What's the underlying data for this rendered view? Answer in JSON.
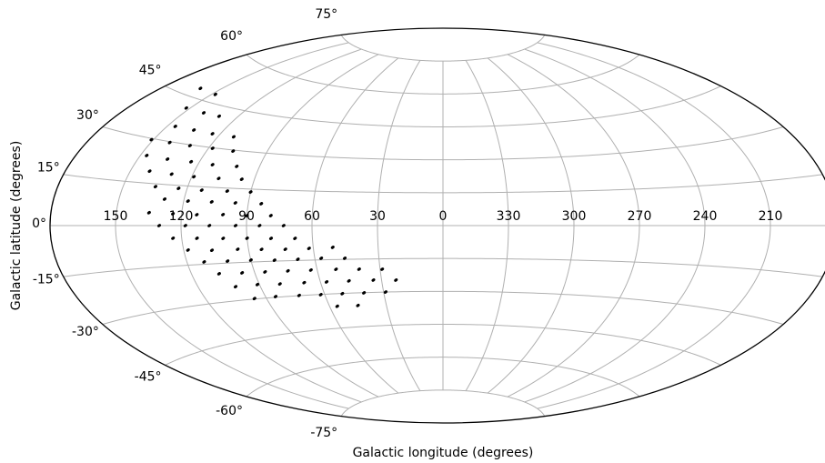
{
  "chart_data": {
    "type": "scatter",
    "projection": "aitoff",
    "x_label": "Galactic longitude (degrees)",
    "y_label": "Galactic latitude (degrees)",
    "x": [
      161,
      148,
      152,
      140,
      130,
      146,
      135,
      124,
      112,
      151,
      141,
      130,
      118,
      107,
      147,
      136,
      124,
      113,
      101,
      141,
      130,
      119,
      107,
      96,
      135,
      124,
      113,
      101,
      90,
      129,
      118,
      107,
      96,
      84,
      135,
      124,
      113,
      101,
      90,
      79,
      130,
      118,
      107,
      95,
      84,
      73,
      124,
      113,
      101,
      90,
      79,
      68,
      118,
      107,
      95,
      84,
      73,
      62,
      51,
      112,
      101,
      90,
      79,
      68,
      57,
      46,
      107,
      96,
      85,
      74,
      63,
      51,
      40,
      29,
      102,
      91,
      80,
      68,
      57,
      46,
      34,
      23,
      96,
      85,
      73,
      62,
      51,
      40,
      29,
      56,
      45
    ],
    "values": [
      48,
      47.8,
      41.5,
      41.4,
      41.4,
      35.2,
      35.2,
      35,
      35,
      29.6,
      29.7,
      29.7,
      29.8,
      29.6,
      24.3,
      24,
      24,
      23.7,
      23.8,
      19.2,
      18.9,
      18.6,
      18.6,
      18.8,
      14,
      13.9,
      13.7,
      13.8,
      13.8,
      9.7,
      9.3,
      9.3,
      9.2,
      9.1,
      4.6,
      4.4,
      4.2,
      4.4,
      4.1,
      4.2,
      0,
      0,
      0,
      0,
      0,
      0,
      -4.7,
      -4.9,
      -5.1,
      -5.2,
      -5.4,
      -5.5,
      -9.3,
      -9.7,
      -9.6,
      -9.9,
      -10.1,
      -9.9,
      -9.6,
      -14.1,
      -14.2,
      -14.2,
      -14.6,
      -14.5,
      -14.3,
      -14.5,
      -19,
      -19.2,
      -19.3,
      -19.3,
      -19.3,
      -19.3,
      -19.5,
      -19.7,
      -24.5,
      -24.3,
      -24.6,
      -24.6,
      -24.7,
      -24.6,
      -24.5,
      -24.7,
      -29.8,
      -29.7,
      -29.9,
      -30.1,
      -30.1,
      -30.1,
      -30,
      -35.5,
      -35.6
    ],
    "color": "#000000",
    "xlim": [
      180,
      -180
    ],
    "ylim": [
      -90,
      90
    ],
    "xticks": [
      150,
      120,
      90,
      60,
      30,
      0,
      330,
      300,
      270,
      240,
      210
    ],
    "yticks": [
      {
        "value": 75,
        "label": "75°"
      },
      {
        "value": 60,
        "label": "60°"
      },
      {
        "value": 45,
        "label": "45°"
      },
      {
        "value": 30,
        "label": "30°"
      },
      {
        "value": 15,
        "label": "15°"
      },
      {
        "value": 0,
        "label": "0°"
      },
      {
        "value": -15,
        "label": "-15°"
      },
      {
        "value": -30,
        "label": "-30°"
      },
      {
        "value": -45,
        "label": "-45°"
      },
      {
        "value": -60,
        "label": "-60°"
      },
      {
        "value": -75,
        "label": "-75°"
      }
    ],
    "grid": true
  }
}
